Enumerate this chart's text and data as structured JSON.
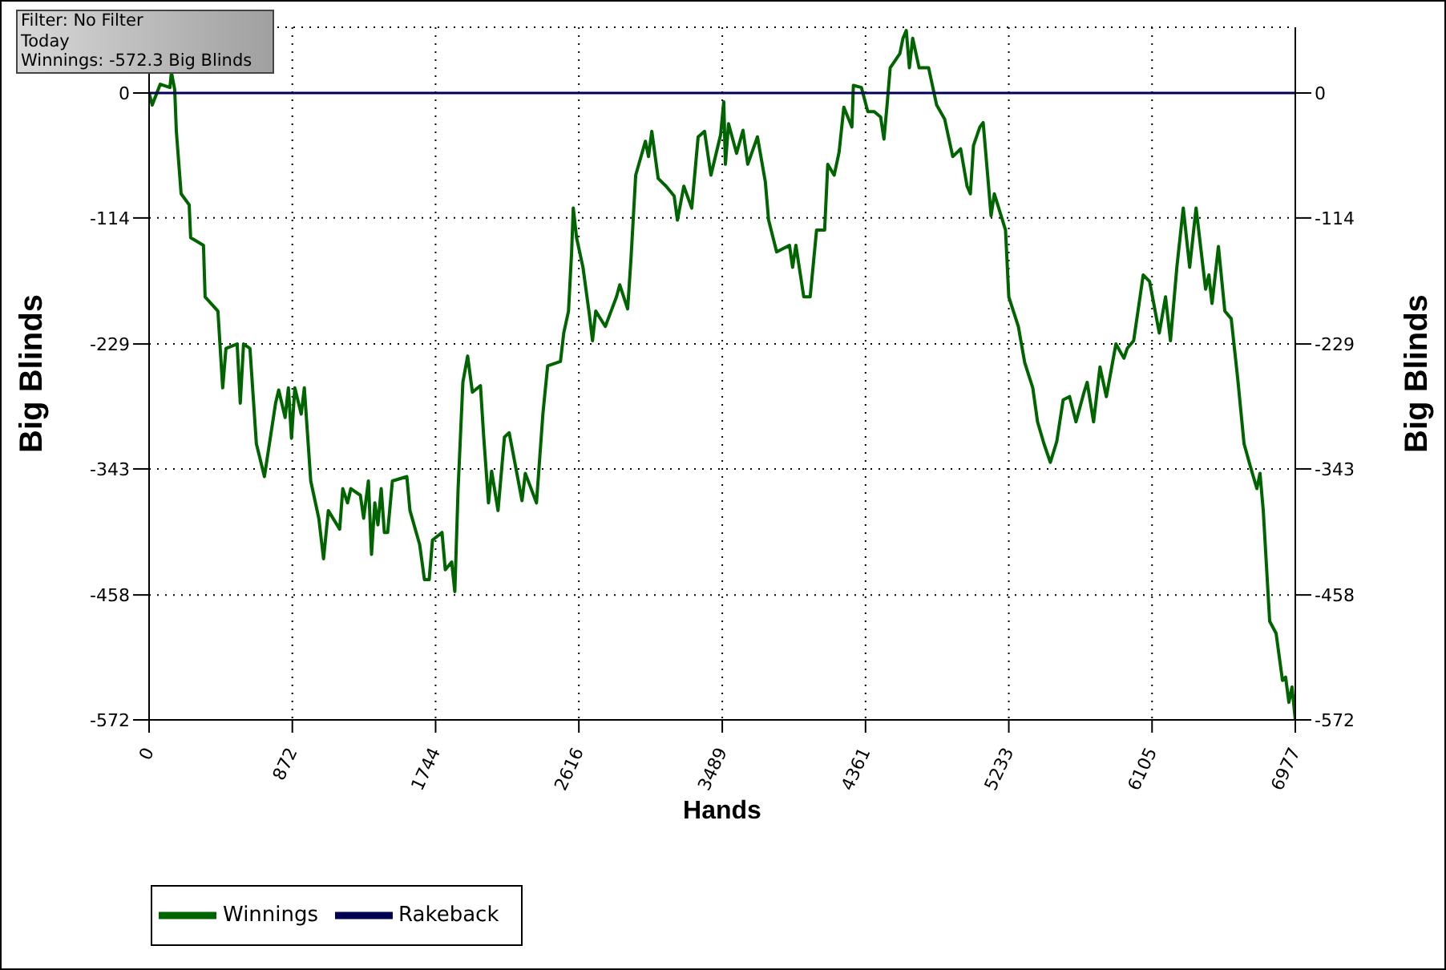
{
  "chart_data": {
    "type": "line",
    "xlabel": "Hands",
    "ylabel": "Big Blinds",
    "y2label": "Big Blinds",
    "annotations": [
      "Filter: No Filter",
      "Today",
      "Winnings: -572.3 Big Blinds"
    ],
    "xlim": [
      0,
      6977
    ],
    "xticks": [
      0,
      872,
      1744,
      2616,
      3489,
      4361,
      5233,
      6105,
      6977
    ],
    "ylim": [
      -572,
      60
    ],
    "yticks": [
      -572,
      -458,
      -343,
      -229,
      -114,
      0
    ],
    "y2lim": [
      -572,
      60
    ],
    "y2ticks": [
      -572,
      -458,
      -343,
      -229,
      -114,
      0
    ],
    "grid": true,
    "legend": "bottom left",
    "series": [
      {
        "name": "Winnings",
        "color": "#006400",
        "x": [
          0,
          19,
          68,
          127,
          136,
          156,
          166,
          195,
          244,
          253,
          331,
          341,
          419,
          448,
          468,
          536,
          555,
          575,
          614,
          653,
          702,
          770,
          789,
          828,
          848,
          867,
          887,
          926,
          945,
          984,
          1033,
          1062,
          1091,
          1160,
          1179,
          1208,
          1228,
          1286,
          1306,
          1335,
          1354,
          1374,
          1393,
          1413,
          1432,
          1452,
          1481,
          1569,
          1588,
          1647,
          1676,
          1705,
          1725,
          1783,
          1803,
          1842,
          1861,
          1881,
          1910,
          1939,
          1968,
          2017,
          2037,
          2066,
          2085,
          2124,
          2163,
          2192,
          2231,
          2270,
          2290,
          2358,
          2397,
          2426,
          2504,
          2524,
          2553,
          2572,
          2582,
          2602,
          2641,
          2680,
          2699,
          2719,
          2777,
          2845,
          2865,
          2913,
          2933,
          2962,
          3021,
          3040,
          3060,
          3099,
          3147,
          3196,
          3216,
          3255,
          3303,
          3342,
          3381,
          3420,
          3479,
          3498,
          3508,
          3527,
          3576,
          3615,
          3644,
          3703,
          3751,
          3771,
          3820,
          3898,
          3917,
          3937,
          3985,
          4024,
          4063,
          4112,
          4131,
          4170,
          4200,
          4229,
          4278,
          4287,
          4336,
          4375,
          4414,
          4453,
          4473,
          4492,
          4511,
          4570,
          4589,
          4609,
          4628,
          4648,
          4687,
          4745,
          4794,
          4843,
          4892,
          4940,
          4979,
          4999,
          5018,
          5057,
          5077,
          5106,
          5125,
          5145,
          5213,
          5233,
          5291,
          5330,
          5379,
          5408,
          5447,
          5486,
          5525,
          5564,
          5603,
          5642,
          5691,
          5710,
          5749,
          5788,
          5827,
          5885,
          5934,
          5954,
          5993,
          6032,
          6051,
          6090,
          6149,
          6187,
          6217,
          6256,
          6295,
          6334,
          6373,
          6431,
          6451,
          6470,
          6509,
          6548,
          6587,
          6626,
          6665,
          6704,
          6743,
          6762,
          6782,
          6821,
          6860,
          6899,
          6918,
          6938,
          6957,
          6977
        ],
        "values": [
          0,
          -11,
          8,
          5,
          19,
          3,
          -35,
          -92,
          -102,
          -132,
          -139,
          -186,
          -199,
          -269,
          -233,
          -229,
          -283,
          -229,
          -233,
          -320,
          -350,
          -283,
          -271,
          -296,
          -269,
          -315,
          -269,
          -293,
          -269,
          -354,
          -388,
          -425,
          -381,
          -398,
          -361,
          -374,
          -361,
          -367,
          -388,
          -354,
          -421,
          -374,
          -394,
          -361,
          -401,
          -401,
          -354,
          -350,
          -381,
          -412,
          -444,
          -444,
          -408,
          -401,
          -435,
          -428,
          -455,
          -361,
          -264,
          -240,
          -273,
          -267,
          -314,
          -374,
          -345,
          -381,
          -314,
          -310,
          -341,
          -372,
          -347,
          -374,
          -293,
          -249,
          -245,
          -219,
          -199,
          -145,
          -105,
          -132,
          -159,
          -202,
          -226,
          -199,
          -213,
          -186,
          -175,
          -197,
          -152,
          -75,
          -44,
          -58,
          -35,
          -78,
          -85,
          -94,
          -116,
          -85,
          -105,
          -40,
          -35,
          -75,
          -38,
          -8,
          -65,
          -28,
          -55,
          -34,
          -65,
          -40,
          -81,
          -116,
          -145,
          -139,
          -159,
          -139,
          -186,
          -186,
          -125,
          -125,
          -65,
          -75,
          -54,
          -13,
          -31,
          7,
          5,
          -17,
          -17,
          -22,
          -42,
          -11,
          23,
          36,
          50,
          57,
          23,
          50,
          23,
          23,
          -11,
          -24,
          -58,
          -51,
          -85,
          -92,
          -48,
          -31,
          -27,
          -78,
          -112,
          -92,
          -125,
          -186,
          -213,
          -246,
          -269,
          -300,
          -320,
          -337,
          -318,
          -280,
          -277,
          -300,
          -273,
          -264,
          -300,
          -250,
          -277,
          -229,
          -242,
          -233,
          -226,
          -186,
          -166,
          -172,
          -219,
          -186,
          -226,
          -159,
          -105,
          -159,
          -105,
          -179,
          -166,
          -192,
          -140,
          -199,
          -206,
          -260,
          -320,
          -341,
          -361,
          -347,
          -381,
          -482,
          -493,
          -536,
          -533,
          -556,
          -542,
          -572
        ]
      },
      {
        "name": "Rakeback",
        "color": "#000050",
        "x": [
          0,
          6977
        ],
        "values": [
          0,
          0
        ]
      }
    ]
  }
}
